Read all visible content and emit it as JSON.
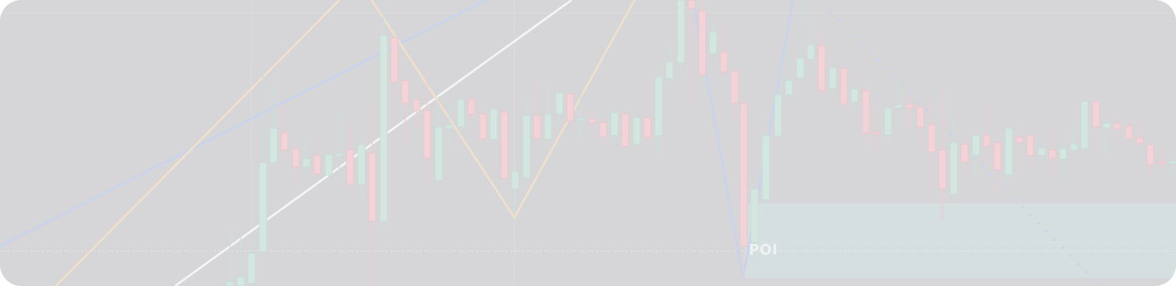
{
  "zone": {
    "label": "POI"
  }
}
